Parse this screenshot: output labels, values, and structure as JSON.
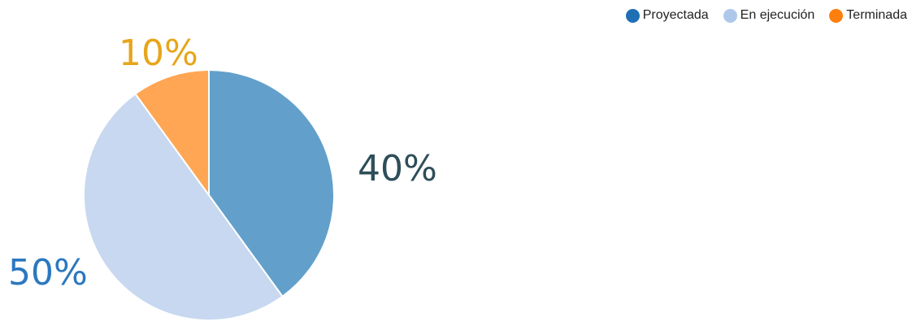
{
  "chart_data": {
    "type": "pie",
    "title": "",
    "legend_position": "top-right",
    "slices": [
      {
        "name": "Proyectada",
        "value": 40,
        "label": "40%",
        "legend_color": "#1f6fb4",
        "slice_color": "#62a0cb",
        "label_color": "#2d4e59"
      },
      {
        "name": "En ejecución",
        "value": 50,
        "label": "50%",
        "legend_color": "#aec8ea",
        "slice_color": "#c7d8f0",
        "label_color": "#2b78c0"
      },
      {
        "name": "Terminada",
        "value": 10,
        "label": "10%",
        "legend_color": "#ff7f0e",
        "slice_color": "#ffa654",
        "label_color": "#e6a61a"
      }
    ]
  }
}
